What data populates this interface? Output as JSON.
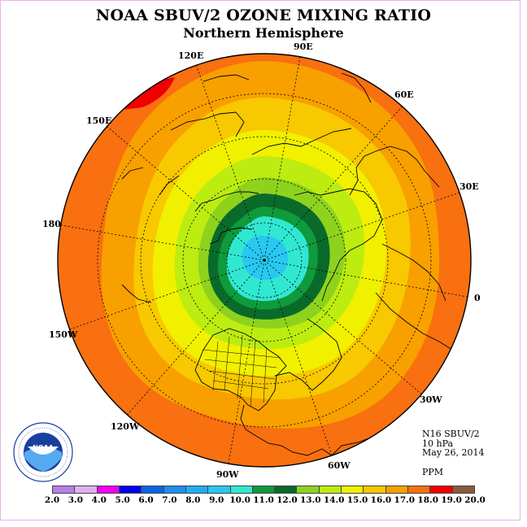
{
  "title": "NOAA SBUV/2 OZONE MIXING RATIO",
  "subtitle": "Northern Hemisphere",
  "longitude_labels": [
    {
      "text": "120E",
      "name": "lon-label-120e"
    },
    {
      "text": "90E",
      "name": "lon-label-90e"
    },
    {
      "text": "60E",
      "name": "lon-label-60e"
    },
    {
      "text": "150E",
      "name": "lon-label-150e"
    },
    {
      "text": "30E",
      "name": "lon-label-30e"
    },
    {
      "text": "180",
      "name": "lon-label-180"
    },
    {
      "text": "0",
      "name": "lon-label-0"
    },
    {
      "text": "150W",
      "name": "lon-label-150w"
    },
    {
      "text": "30W",
      "name": "lon-label-30w"
    },
    {
      "text": "120W",
      "name": "lon-label-120w"
    },
    {
      "text": "60W",
      "name": "lon-label-60w"
    },
    {
      "text": "90W",
      "name": "lon-label-90w"
    }
  ],
  "info": {
    "instrument": "N16 SBUV/2",
    "level": "10 hPa",
    "date": "May 26, 2014",
    "units": "PPM"
  },
  "logo": {
    "text": "NOAA",
    "ring_text": "NATIONAL OCEANIC AND ATMOSPHERIC ADMINISTRATION · U.S. DEPARTMENT OF COMMERCE"
  },
  "colorbar": {
    "ticks": [
      "2.0",
      "3.0",
      "4.0",
      "5.0",
      "6.0",
      "7.0",
      "8.0",
      "9.0",
      "10.0",
      "11.0",
      "12.0",
      "13.0",
      "14.0",
      "15.0",
      "16.0",
      "17.0",
      "18.0",
      "19.0",
      "20.0"
    ],
    "colors": [
      "#b57ee8",
      "#dfb0f0",
      "#f000f0",
      "#0000f0",
      "#0a64e6",
      "#1d8ff2",
      "#1eaef4",
      "#28c8f0",
      "#30e8d2",
      "#0f9a3c",
      "#0a6a2a",
      "#8ed21e",
      "#bcec10",
      "#f0f000",
      "#f8c800",
      "#f8a000",
      "#f87010",
      "#f00000",
      "#8b5a3c"
    ]
  },
  "map_fields": {
    "description_colors": {
      "outer": "#f87010",
      "band_17": "#f8a000",
      "band_16": "#f8c800",
      "band_15": "#f0f000",
      "band_14": "#bcec10",
      "band_13": "#8ed21e",
      "band_12": "#0a6a2a",
      "band_11": "#0f9a3c",
      "band_10": "#30e8d2",
      "band_9": "#28c8f0",
      "band_19": "#f00000"
    }
  }
}
